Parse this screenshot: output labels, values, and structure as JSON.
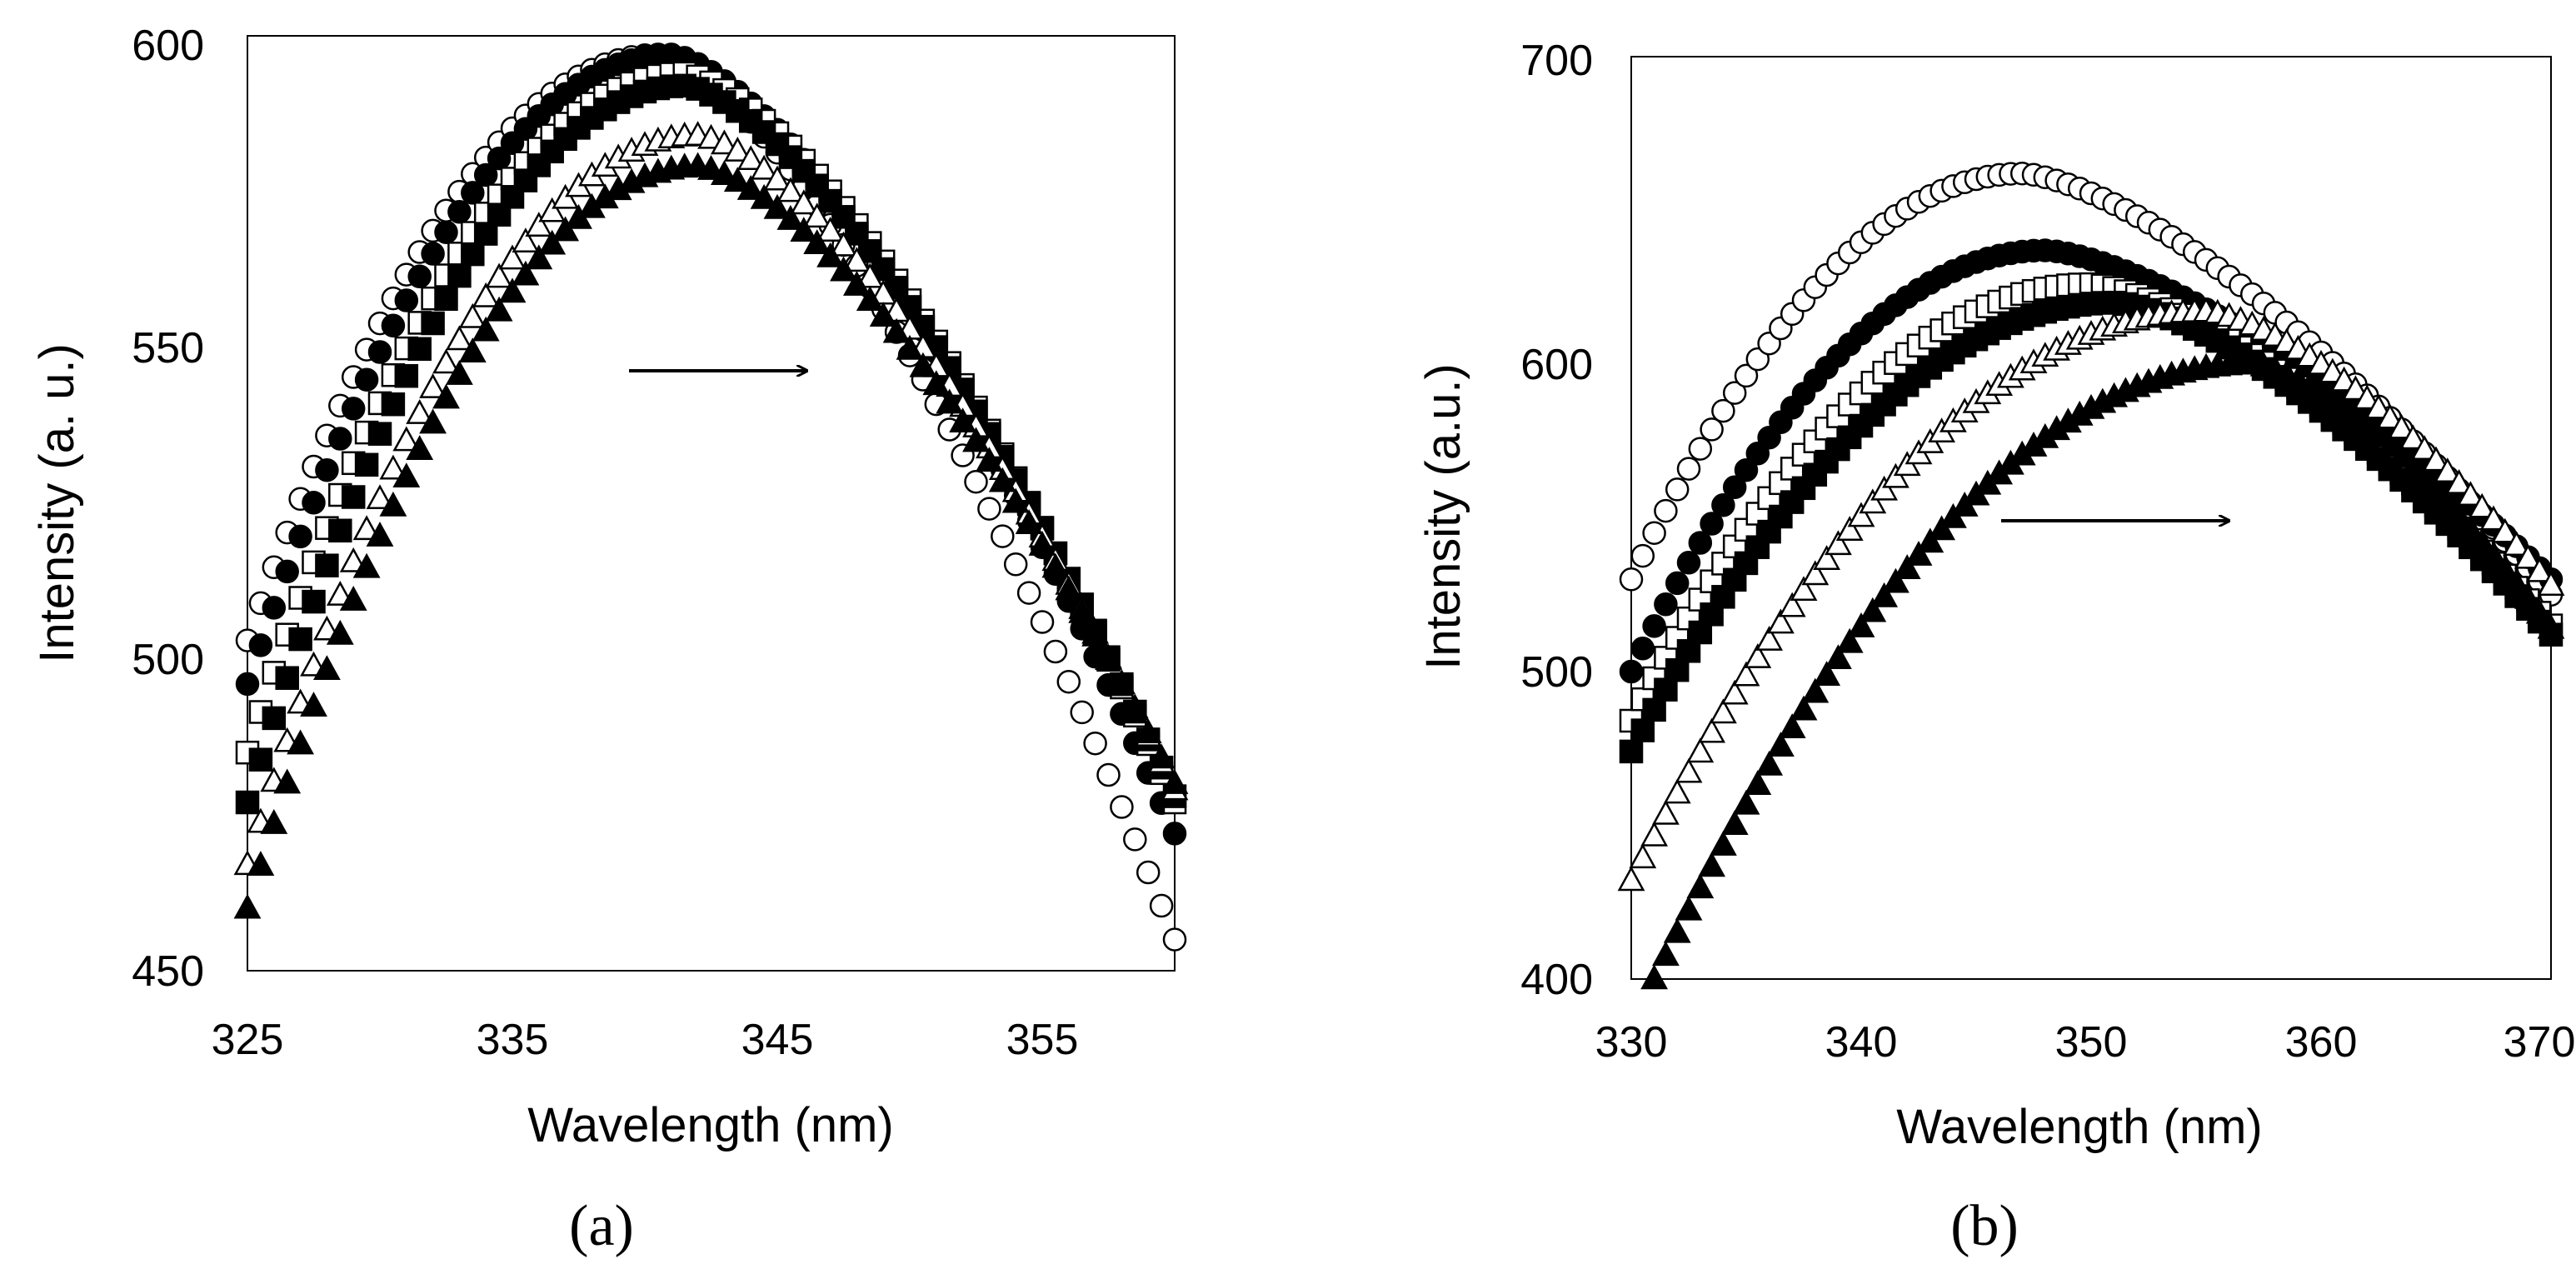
{
  "figure": {
    "panel_labels": [
      "(a)",
      "(b)"
    ]
  },
  "chart_data": [
    {
      "type": "scatter",
      "panel": "a",
      "title": "",
      "xlabel": "Wavelength (nm)",
      "ylabel": "Intensity  (a. u.)",
      "xlim": [
        325,
        360
      ],
      "ylim": [
        450,
        600
      ],
      "xticks": [
        325,
        335,
        345,
        355
      ],
      "yticks": [
        450,
        500,
        550,
        600
      ],
      "annotation": "arrow pointing right (red shift of emission maximum)",
      "grid": false,
      "legend": "none",
      "series": [
        {
          "name": "series 1",
          "marker": "circle-open",
          "start": [
            325,
            503
          ],
          "peak": [
            340.5,
            597
          ],
          "end": [
            360,
            455
          ]
        },
        {
          "name": "series 2",
          "marker": "circle-filled",
          "start": [
            325,
            496
          ],
          "peak": [
            341,
            597
          ],
          "end": [
            360,
            472
          ]
        },
        {
          "name": "series 3",
          "marker": "square-open",
          "start": [
            325,
            485
          ],
          "peak": [
            341.5,
            594
          ],
          "end": [
            360,
            477
          ]
        },
        {
          "name": "series 4",
          "marker": "square-filled",
          "start": [
            325,
            477
          ],
          "peak": [
            341.5,
            592
          ],
          "end": [
            360,
            478
          ]
        },
        {
          "name": "series 5",
          "marker": "triangle-open",
          "start": [
            325,
            467
          ],
          "peak": [
            342,
            584
          ],
          "end": [
            360,
            479
          ]
        },
        {
          "name": "series 6",
          "marker": "triangle-filled",
          "start": [
            325,
            460
          ],
          "peak": [
            342,
            579
          ],
          "end": [
            360,
            480
          ]
        }
      ]
    },
    {
      "type": "scatter",
      "panel": "b",
      "title": "",
      "xlabel": "Wavelength (nm)",
      "ylabel": "Intensity (a.u.)",
      "xlim": [
        330,
        370
      ],
      "ylim": [
        400,
        700
      ],
      "xticks": [
        330,
        340,
        350,
        360,
        370
      ],
      "yticks": [
        400,
        500,
        600,
        700
      ],
      "annotation": "arrow pointing right (red shift of emission maximum)",
      "grid": false,
      "legend": "none",
      "series": [
        {
          "name": "series 1",
          "marker": "circle-open",
          "start": [
            330,
            530
          ],
          "peak": [
            347,
            662
          ],
          "end": [
            370,
            525
          ]
        },
        {
          "name": "series 2",
          "marker": "circle-filled",
          "start": [
            330,
            500
          ],
          "peak": [
            348,
            637
          ],
          "end": [
            370,
            530
          ]
        },
        {
          "name": "series 3",
          "marker": "square-open",
          "start": [
            330,
            484
          ],
          "peak": [
            350,
            626
          ],
          "end": [
            370,
            515
          ]
        },
        {
          "name": "series 4",
          "marker": "square-filled",
          "start": [
            330,
            474
          ],
          "peak": [
            351,
            620
          ],
          "end": [
            370,
            512
          ]
        },
        {
          "name": "series 5",
          "marker": "triangle-open",
          "start": [
            330,
            432
          ],
          "peak": [
            355,
            617
          ],
          "end": [
            370,
            528
          ]
        },
        {
          "name": "series 6",
          "marker": "triangle-filled",
          "start": [
            331,
            400
          ],
          "peak": [
            357,
            600
          ],
          "end": [
            370,
            514
          ]
        }
      ]
    }
  ]
}
